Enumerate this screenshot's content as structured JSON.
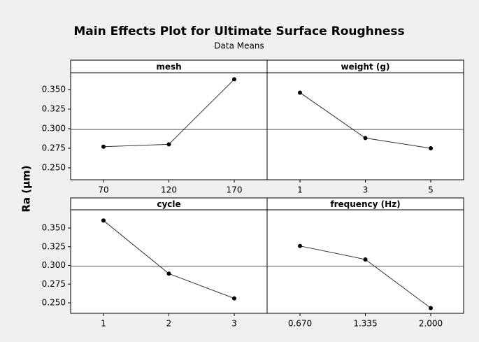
{
  "chart_data": {
    "type": "line",
    "title": "Main Effects Plot for Ultimate Surface Roughness",
    "subtitle": "Data Means",
    "y_label": "Ra (µm)",
    "color": "#333333",
    "reference_line": 0.299,
    "panels": [
      {
        "title": "mesh",
        "categories": [
          "70",
          "120",
          "170"
        ],
        "values": [
          0.277,
          0.28,
          0.363
        ],
        "ylim": [
          0.2348,
          0.3714
        ],
        "yticks": [
          {
            "value": 0.25,
            "label": "0.250"
          },
          {
            "value": 0.275,
            "label": "0.275"
          },
          {
            "value": 0.3,
            "label": "0.300"
          },
          {
            "value": 0.325,
            "label": "0.325"
          },
          {
            "value": 0.35,
            "label": "0.350"
          }
        ]
      },
      {
        "title": "weight (g)",
        "categories": [
          "1",
          "3",
          "5"
        ],
        "values": [
          0.346,
          0.288,
          0.275
        ],
        "ylim": [
          0.2348,
          0.3714
        ]
      },
      {
        "title": "cycle",
        "categories": [
          "1",
          "2",
          "3"
        ],
        "values": [
          0.36,
          0.289,
          0.256
        ],
        "ylim": [
          0.236,
          0.3743
        ],
        "yticks": [
          {
            "value": 0.25,
            "label": "0.250"
          },
          {
            "value": 0.275,
            "label": "0.275"
          },
          {
            "value": 0.3,
            "label": "0.300"
          },
          {
            "value": 0.325,
            "label": "0.325"
          },
          {
            "value": 0.35,
            "label": "0.350"
          }
        ]
      },
      {
        "title": "frequency (Hz)",
        "categories": [
          "0.670",
          "1.335",
          "2.000"
        ],
        "values": [
          0.326,
          0.308,
          0.243
        ],
        "ylim": [
          0.236,
          0.3743
        ]
      }
    ]
  }
}
